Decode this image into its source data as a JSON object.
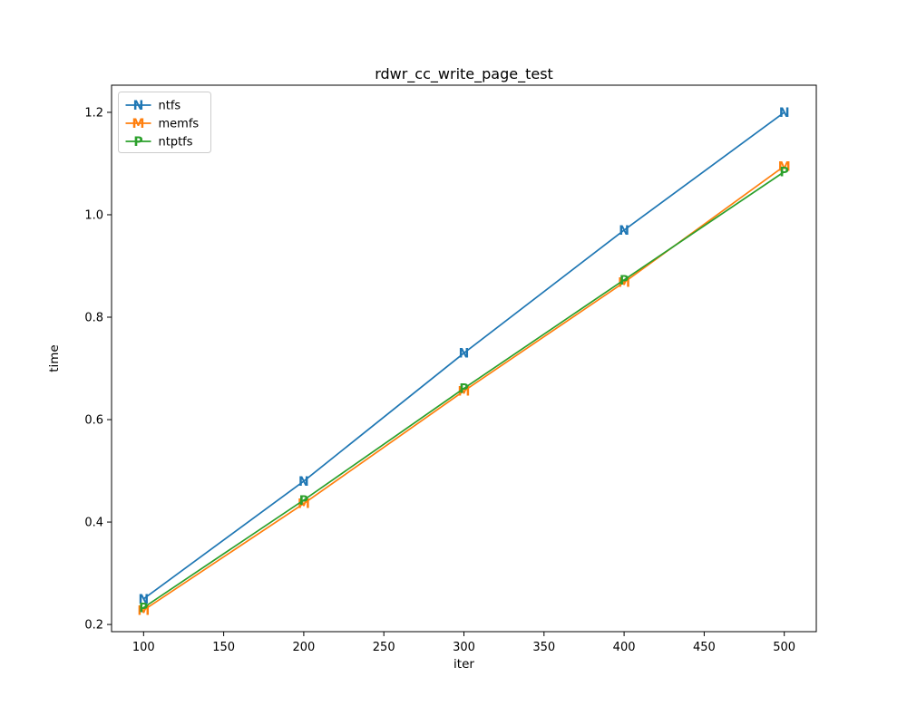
{
  "chart_data": {
    "type": "line",
    "title": "rdwr_cc_write_page_test",
    "xlabel": "iter",
    "ylabel": "time",
    "x": [
      100,
      200,
      300,
      400,
      500
    ],
    "series": [
      {
        "name": "ntfs",
        "color": "#1f77b4",
        "marker": "N",
        "values": [
          0.25,
          0.48,
          0.73,
          0.97,
          1.2
        ]
      },
      {
        "name": "memfs",
        "color": "#ff7f0e",
        "marker": "M",
        "values": [
          0.228,
          0.436,
          0.656,
          0.868,
          1.095
        ]
      },
      {
        "name": "ntptfs",
        "color": "#2ca02c",
        "marker": "P",
        "values": [
          0.233,
          0.443,
          0.661,
          0.873,
          1.084
        ]
      }
    ],
    "xlim": [
      80,
      520
    ],
    "ylim": [
      0.186,
      1.253
    ],
    "xticks": [
      100,
      150,
      200,
      250,
      300,
      350,
      400,
      450,
      500
    ],
    "yticks": [
      0.2,
      0.4,
      0.6,
      0.8,
      1.0,
      1.2
    ],
    "grid": false,
    "legend": {
      "position": "upper left",
      "entries": [
        "ntfs",
        "memfs",
        "ntptfs"
      ]
    },
    "axis_color": "#000000",
    "legend_border_color": "#cccccc"
  }
}
